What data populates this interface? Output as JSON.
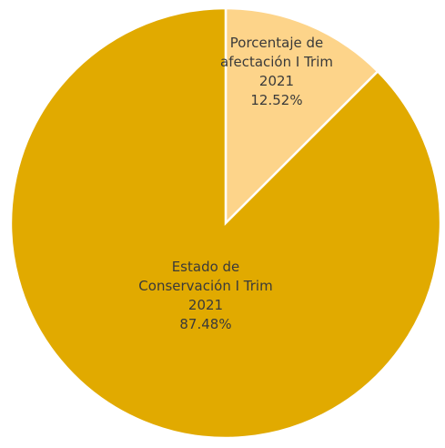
{
  "chart_data": {
    "type": "pie",
    "slices": [
      {
        "label_lines": [
          "Porcentaje de",
          "afectación I Trim",
          "2021"
        ],
        "value": 12.52,
        "value_label": "12.52%",
        "color": "#fdd48a"
      },
      {
        "label_lines": [
          "Estado de",
          "Conservación I Trim",
          "2021"
        ],
        "value": 87.48,
        "value_label": "87.48%",
        "color": "#e1aa00"
      }
    ],
    "start_angle": "12 o'clock",
    "direction": "clockwise",
    "legend": "none"
  }
}
